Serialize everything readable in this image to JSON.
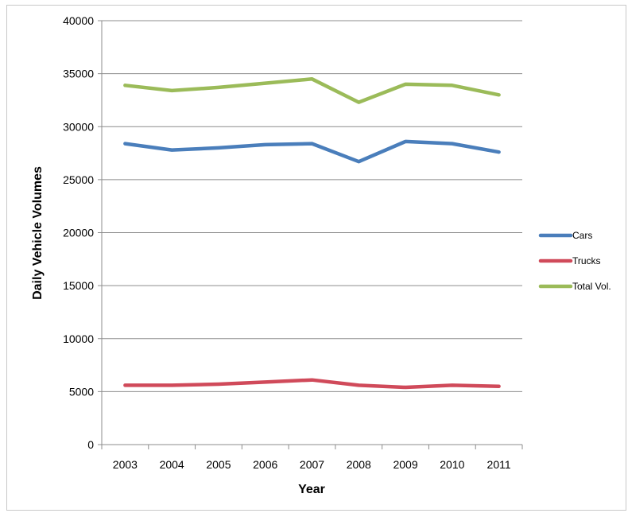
{
  "chart_data": {
    "type": "line",
    "title": "",
    "xlabel": "Year",
    "ylabel": "Daily Vehicle Volumes",
    "categories": [
      "2003",
      "2004",
      "2005",
      "2006",
      "2007",
      "2008",
      "2009",
      "2010",
      "2011"
    ],
    "ylim": [
      0,
      40000
    ],
    "yticks": [
      0,
      5000,
      10000,
      15000,
      20000,
      25000,
      30000,
      35000,
      40000
    ],
    "grid": true,
    "legend_position": "right",
    "series": [
      {
        "name": "Cars",
        "color": "#4a7ebb",
        "values": [
          28400,
          27800,
          28000,
          28300,
          28400,
          26700,
          28600,
          28400,
          27600
        ]
      },
      {
        "name": "Trucks",
        "color": "#d04a5a",
        "values": [
          5600,
          5600,
          5700,
          5900,
          6100,
          5600,
          5400,
          5600,
          5500
        ]
      },
      {
        "name": "Total Vol.",
        "color": "#9bbb59",
        "values": [
          33900,
          33400,
          33700,
          34100,
          34500,
          32300,
          34000,
          33900,
          33000
        ]
      }
    ]
  }
}
